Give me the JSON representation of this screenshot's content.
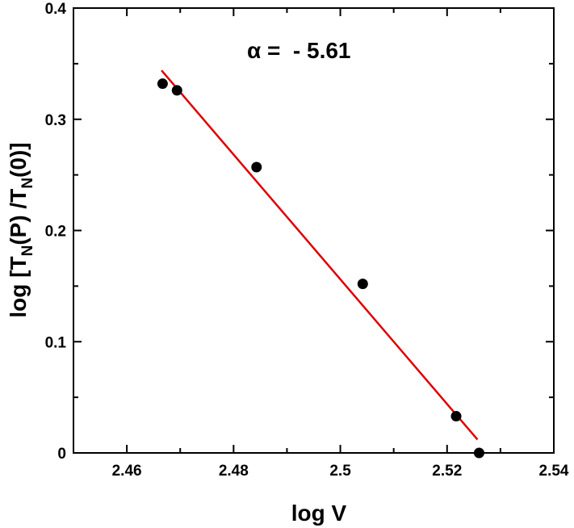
{
  "chart_data": {
    "type": "scatter",
    "xlabel": "log V",
    "ylabel": {
      "parts": [
        {
          "text": "log [T",
          "sub": false
        },
        {
          "text": "N",
          "sub": true
        },
        {
          "text": "(P) /T",
          "sub": false
        },
        {
          "text": "N",
          "sub": true
        },
        {
          "text": "(0)]",
          "sub": false
        }
      ]
    },
    "xlim": [
      2.45,
      2.54
    ],
    "ylim": [
      0,
      0.4
    ],
    "x_ticks": [
      {
        "value": 2.46,
        "label": "2.46"
      },
      {
        "value": 2.48,
        "label": "2.48"
      },
      {
        "value": 2.5,
        "label": "2.5"
      },
      {
        "value": 2.52,
        "label": "2.52"
      },
      {
        "value": 2.54,
        "label": "2.54"
      }
    ],
    "y_ticks": [
      {
        "value": 0,
        "label": "0"
      },
      {
        "value": 0.1,
        "label": "0.1"
      },
      {
        "value": 0.2,
        "label": "0.2"
      },
      {
        "value": 0.3,
        "label": "0.3"
      },
      {
        "value": 0.4,
        "label": "0.4"
      }
    ],
    "x_minor_ticks": [
      2.45,
      2.47,
      2.49,
      2.51,
      2.53
    ],
    "y_minor_ticks": [
      0.05,
      0.15,
      0.25,
      0.35
    ],
    "series": [
      {
        "type": "scatter",
        "color": "#000000",
        "points": [
          {
            "x": 2.4667,
            "y": 0.332
          },
          {
            "x": 2.4694,
            "y": 0.326
          },
          {
            "x": 2.4843,
            "y": 0.257
          },
          {
            "x": 2.5042,
            "y": 0.152
          },
          {
            "x": 2.5217,
            "y": 0.033
          },
          {
            "x": 2.526,
            "y": 0.0
          }
        ]
      },
      {
        "type": "line",
        "color": "#dd0000",
        "points": [
          {
            "x": 2.4665,
            "y": 0.344
          },
          {
            "x": 2.5257,
            "y": 0.012
          }
        ]
      }
    ],
    "annotation": {
      "symbol": "α",
      "text": " =  - 5.61",
      "x": 2.49,
      "y": 0.364
    },
    "grid": false,
    "legend": "none"
  }
}
